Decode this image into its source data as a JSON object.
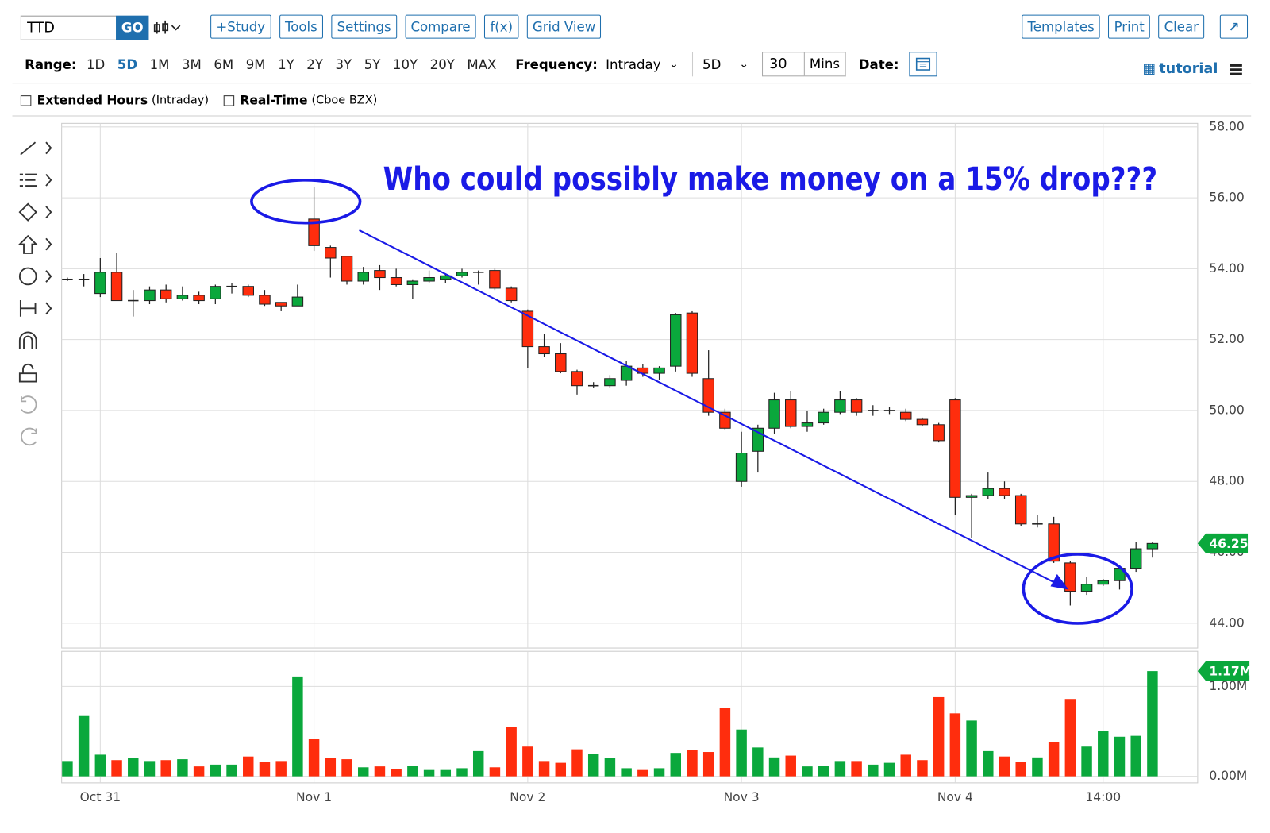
{
  "toolbar": {
    "symbol": "TTD",
    "go": "GO",
    "buttons": [
      "+Study",
      "Tools",
      "Settings",
      "Compare",
      "f(x)",
      "Grid View"
    ],
    "right_buttons": [
      "Templates",
      "Print",
      "Clear"
    ]
  },
  "range_bar": {
    "range_label": "Range:",
    "ranges": [
      "1D",
      "5D",
      "1M",
      "3M",
      "6M",
      "9M",
      "1Y",
      "2Y",
      "3Y",
      "5Y",
      "10Y",
      "20Y",
      "MAX"
    ],
    "frequency_label": "Frequency:",
    "frequency": "Intraday",
    "period": "5D",
    "interval": "30",
    "interval_unit": "Mins",
    "date_label": "Date:",
    "tutorial": "tutorial"
  },
  "options": {
    "extended_hours": "Extended Hours",
    "extended_hours_note": "(Intraday)",
    "real_time": "Real-Time",
    "real_time_note": "(Cboe BZX)"
  },
  "chart_data": {
    "type": "candlestick",
    "annotation": "Who could possibly make money on a 15% drop???",
    "categories": [
      null,
      null,
      "Oct 31",
      null,
      null,
      null,
      null,
      null,
      null,
      null,
      null,
      null,
      null,
      null,
      null,
      "Nov 1",
      null,
      null,
      null,
      null,
      null,
      null,
      null,
      null,
      null,
      null,
      null,
      null,
      "Nov 2",
      null,
      null,
      null,
      null,
      null,
      null,
      null,
      null,
      null,
      null,
      null,
      null,
      "Nov 3",
      null,
      null,
      null,
      null,
      null,
      null,
      null,
      null,
      null,
      null,
      null,
      null,
      "Nov 4",
      null,
      null,
      null,
      null,
      null,
      null,
      null,
      null,
      "14:00",
      null,
      null,
      null
    ],
    "open": [
      53.7,
      53.7,
      53.3,
      53.9,
      53.1,
      53.1,
      53.4,
      53.15,
      53.25,
      53.15,
      53.5,
      53.5,
      53.25,
      53.05,
      52.95,
      55.4,
      54.6,
      54.35,
      53.65,
      53.95,
      53.75,
      53.55,
      53.65,
      53.7,
      53.8,
      53.9,
      53.95,
      53.45,
      52.8,
      51.8,
      51.6,
      51.1,
      50.7,
      50.7,
      50.85,
      51.2,
      51.05,
      51.25,
      52.75,
      50.9,
      49.95,
      48.0,
      48.85,
      49.5,
      50.3,
      49.55,
      49.65,
      49.95,
      50.3,
      50.0,
      50.0,
      49.95,
      49.75,
      49.6,
      50.3,
      47.55,
      47.6,
      47.8,
      47.6,
      46.8,
      46.8,
      45.7,
      44.9,
      45.1,
      45.2,
      45.55,
      46.1
    ],
    "high": [
      53.75,
      53.85,
      54.3,
      54.45,
      53.4,
      53.5,
      53.55,
      53.5,
      53.35,
      53.55,
      53.6,
      53.55,
      53.4,
      53.05,
      53.55,
      56.3,
      54.65,
      54.35,
      54.05,
      54.1,
      54.0,
      53.7,
      53.95,
      53.85,
      54.0,
      53.95,
      54.0,
      53.5,
      52.85,
      52.15,
      51.9,
      51.15,
      50.8,
      51.0,
      51.4,
      51.3,
      51.25,
      52.75,
      52.8,
      51.7,
      50.05,
      49.4,
      49.6,
      50.5,
      50.55,
      50.0,
      50.05,
      50.55,
      50.35,
      50.15,
      50.1,
      50.05,
      49.8,
      49.65,
      50.35,
      47.65,
      48.25,
      48.0,
      47.65,
      47.05,
      47.0,
      45.75,
      45.3,
      45.25,
      45.65,
      46.3,
      46.3
    ],
    "low": [
      53.65,
      53.5,
      53.2,
      53.1,
      52.65,
      53.0,
      53.05,
      53.1,
      53.0,
      53.0,
      53.3,
      53.2,
      52.95,
      52.8,
      52.95,
      54.5,
      53.75,
      53.55,
      53.55,
      53.4,
      53.5,
      53.15,
      53.6,
      53.6,
      53.75,
      53.55,
      53.4,
      53.05,
      51.2,
      51.5,
      51.05,
      50.45,
      50.65,
      50.65,
      50.7,
      50.95,
      50.85,
      51.1,
      50.95,
      49.85,
      49.45,
      47.85,
      48.25,
      49.35,
      49.5,
      49.4,
      49.6,
      49.9,
      49.85,
      49.85,
      49.9,
      49.7,
      49.55,
      49.1,
      47.05,
      46.4,
      47.5,
      47.5,
      46.75,
      46.7,
      45.7,
      44.5,
      44.8,
      45.05,
      44.95,
      45.45,
      45.85
    ],
    "close": [
      53.7,
      53.7,
      53.9,
      53.1,
      53.1,
      53.4,
      53.15,
      53.25,
      53.1,
      53.5,
      53.5,
      53.25,
      53.0,
      52.95,
      53.2,
      54.65,
      54.3,
      53.65,
      53.9,
      53.75,
      53.55,
      53.65,
      53.75,
      53.8,
      53.9,
      53.9,
      53.45,
      53.1,
      51.8,
      51.6,
      51.1,
      50.7,
      50.7,
      50.9,
      51.25,
      51.05,
      51.2,
      52.7,
      51.05,
      49.95,
      49.5,
      48.8,
      49.5,
      50.3,
      49.55,
      49.65,
      49.95,
      50.3,
      49.95,
      50.0,
      50.0,
      49.75,
      49.6,
      49.15,
      47.55,
      47.6,
      47.8,
      47.6,
      46.8,
      46.8,
      45.75,
      44.9,
      45.1,
      45.2,
      45.55,
      46.1,
      46.25
    ],
    "up_color": "#0aa83c",
    "down_color": "#ff2d0d",
    "ylim": [
      43.3,
      58.1
    ],
    "yticks": [
      {
        "value": 44,
        "label": "44.00"
      },
      {
        "value": 46,
        "label": "46.00"
      },
      {
        "value": 48,
        "label": "48.00"
      },
      {
        "value": 50,
        "label": "50.00"
      },
      {
        "value": 52,
        "label": "52.00"
      },
      {
        "value": 54,
        "label": "54.00"
      },
      {
        "value": 56,
        "label": "56.00"
      },
      {
        "value": 58,
        "label": "58.00"
      }
    ],
    "grid": true,
    "volume": {
      "values": [
        0.17,
        0.67,
        0.24,
        0.18,
        0.2,
        0.17,
        0.18,
        0.19,
        0.11,
        0.13,
        0.13,
        0.22,
        0.16,
        0.17,
        1.11,
        0.42,
        0.2,
        0.19,
        0.1,
        0.11,
        0.08,
        0.12,
        0.07,
        0.07,
        0.09,
        0.28,
        0.1,
        0.55,
        0.33,
        0.17,
        0.15,
        0.3,
        0.25,
        0.2,
        0.09,
        0.07,
        0.09,
        0.26,
        0.29,
        0.27,
        0.76,
        0.52,
        0.32,
        0.21,
        0.23,
        0.11,
        0.12,
        0.17,
        0.17,
        0.13,
        0.15,
        0.24,
        0.18,
        0.88,
        0.7,
        0.62,
        0.28,
        0.22,
        0.16,
        0.21,
        0.38,
        0.86,
        0.33,
        0.5,
        0.44,
        0.45,
        1.17
      ],
      "ylim": [
        0,
        1.39
      ],
      "yticks": [
        {
          "value": 0,
          "label": "0.00M"
        },
        {
          "value": 1,
          "label": "1.00M"
        }
      ],
      "last_label": "1.17M"
    }
  }
}
